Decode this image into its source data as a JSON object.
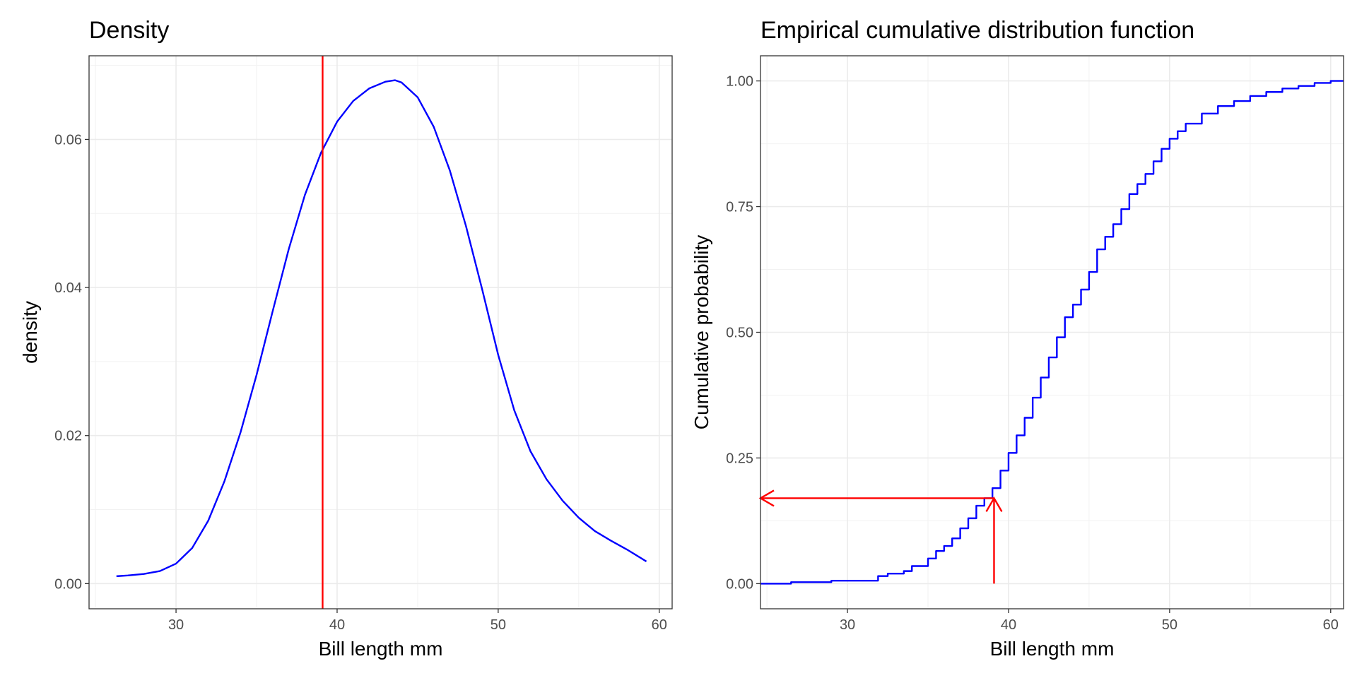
{
  "chart_data": [
    {
      "type": "line",
      "title": "Density",
      "xlabel": "Bill length mm",
      "ylabel": "density",
      "xlim": [
        24.6,
        60.8
      ],
      "ylim": [
        -0.0034,
        0.0713
      ],
      "x_major_ticks": [
        30,
        40,
        50,
        60
      ],
      "x_minor_ticks": [
        25,
        35,
        45,
        55
      ],
      "y_major_ticks": [
        0,
        0.02,
        0.04,
        0.06
      ],
      "y_minor_ticks": [
        0.01,
        0.03,
        0.05,
        0.07
      ],
      "x_tick_labels": [
        "30",
        "40",
        "50",
        "60"
      ],
      "y_tick_labels": [
        "0.00",
        "0.02",
        "0.04",
        "0.06"
      ],
      "grid": true,
      "series": [
        {
          "color": "#0000ff",
          "x": [
            26.3,
            27.0,
            28.0,
            29.0,
            30.0,
            31.0,
            32.0,
            33.0,
            34.0,
            35.0,
            36.0,
            37.0,
            38.0,
            39.0,
            40.0,
            41.0,
            42.0,
            43.0,
            43.6,
            44.0,
            45.0,
            46.0,
            47.0,
            48.0,
            49.0,
            50.0,
            51.0,
            52.0,
            53.0,
            54.0,
            55.0,
            56.0,
            57.0,
            58.0,
            59.2
          ],
          "y": [
            0.001,
            0.0011,
            0.0013,
            0.0017,
            0.0027,
            0.0048,
            0.0085,
            0.0138,
            0.0204,
            0.0282,
            0.0368,
            0.0452,
            0.0525,
            0.0582,
            0.0624,
            0.0652,
            0.0669,
            0.0678,
            0.068,
            0.0677,
            0.0657,
            0.0617,
            0.0558,
            0.0483,
            0.0398,
            0.0309,
            0.0234,
            0.0179,
            0.0141,
            0.0112,
            0.0089,
            0.0071,
            0.0058,
            0.0046,
            0.003
          ]
        }
      ],
      "vline": {
        "x": 39.1,
        "color": "#ff0000"
      }
    },
    {
      "type": "line",
      "title": "Empirical cumulative distribution function",
      "xlabel": "Bill length mm",
      "ylabel": "Cumulative probability",
      "xlim": [
        24.6,
        60.8
      ],
      "ylim": [
        -0.05,
        1.05
      ],
      "x_major_ticks": [
        30,
        40,
        50,
        60
      ],
      "x_minor_ticks": [
        25,
        35,
        45,
        55
      ],
      "y_major_ticks": [
        0,
        0.25,
        0.5,
        0.75,
        1.0
      ],
      "y_minor_ticks": [
        0.125,
        0.375,
        0.625,
        0.875
      ],
      "x_tick_labels": [
        "30",
        "40",
        "50",
        "60"
      ],
      "y_tick_labels": [
        "0.00",
        "0.25",
        "0.50",
        "0.75",
        "1.00"
      ],
      "grid": true,
      "series": [
        {
          "color": "#0000ff",
          "step": true,
          "x": [
            24.6,
            26.5,
            29.0,
            31.9,
            32.5,
            33.5,
            34.0,
            35.0,
            35.5,
            36.0,
            36.5,
            37.0,
            37.5,
            38.0,
            38.5,
            39.0,
            39.5,
            40.0,
            40.5,
            41.0,
            41.5,
            42.0,
            42.5,
            43.0,
            43.5,
            44.0,
            44.5,
            45.0,
            45.5,
            46.0,
            46.5,
            47.0,
            47.5,
            48.0,
            48.5,
            49.0,
            49.5,
            50.0,
            50.5,
            51.0,
            52.0,
            53.0,
            54.0,
            55.0,
            56.0,
            57.0,
            58.0,
            59.0,
            60.0
          ],
          "y": [
            0.0,
            0.003,
            0.006,
            0.015,
            0.02,
            0.025,
            0.035,
            0.05,
            0.065,
            0.075,
            0.09,
            0.11,
            0.13,
            0.155,
            0.17,
            0.19,
            0.225,
            0.26,
            0.295,
            0.33,
            0.37,
            0.41,
            0.45,
            0.49,
            0.53,
            0.555,
            0.585,
            0.62,
            0.665,
            0.69,
            0.715,
            0.745,
            0.775,
            0.795,
            0.815,
            0.84,
            0.865,
            0.885,
            0.9,
            0.915,
            0.935,
            0.95,
            0.96,
            0.97,
            0.978,
            0.985,
            0.99,
            0.996,
            1.0
          ]
        }
      ],
      "annotation": {
        "x": 39.1,
        "y": 0.17,
        "color": "#ff0000"
      }
    }
  ]
}
